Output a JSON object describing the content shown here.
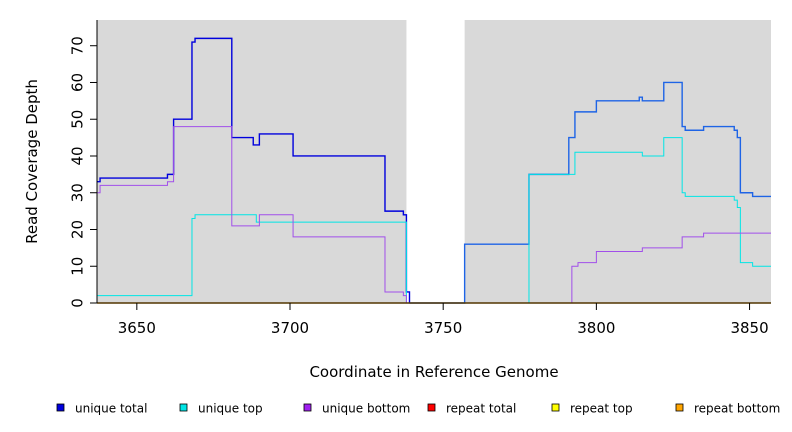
{
  "chart_data": {
    "type": "line",
    "title": "",
    "xlabel": "Coordinate in Reference Genome",
    "ylabel": "Read Coverage Depth",
    "xlim": [
      3637,
      3857
    ],
    "ylim": [
      0,
      77
    ],
    "x_ticks": [
      3650,
      3700,
      3750,
      3800,
      3850
    ],
    "y_ticks": [
      0,
      10,
      20,
      30,
      40,
      50,
      60,
      70
    ],
    "background": "#d9d9d9",
    "gap_region": [
      3738,
      3757
    ],
    "gap_color": "#ffffff",
    "step": true,
    "legend_position": "bottom",
    "series": [
      {
        "name": "unique total",
        "color": "#0000dd",
        "stroke_width": 1.4,
        "points": [
          [
            3637,
            33
          ],
          [
            3638,
            34
          ],
          [
            3645,
            34
          ],
          [
            3660,
            35
          ],
          [
            3662,
            50
          ],
          [
            3668,
            71
          ],
          [
            3669,
            72
          ],
          [
            3681,
            45
          ],
          [
            3688,
            43
          ],
          [
            3690,
            46
          ],
          [
            3701,
            40
          ],
          [
            3731,
            25
          ],
          [
            3737,
            24
          ],
          [
            3738,
            3
          ],
          [
            3739,
            0
          ]
        ]
      },
      {
        "name": "unique total",
        "color": "#1e64e6",
        "stroke_width": 1.4,
        "points": [
          [
            3739,
            0
          ],
          [
            3757,
            16
          ],
          [
            3778,
            35
          ],
          [
            3791,
            45
          ],
          [
            3793,
            52
          ],
          [
            3800,
            55
          ],
          [
            3814,
            56
          ],
          [
            3815,
            55
          ],
          [
            3822,
            60
          ],
          [
            3828,
            48
          ],
          [
            3829,
            47
          ],
          [
            3835,
            48
          ],
          [
            3845,
            47
          ],
          [
            3846,
            45
          ],
          [
            3847,
            30
          ],
          [
            3851,
            29
          ],
          [
            3857,
            29
          ]
        ]
      },
      {
        "name": "unique top",
        "color": "#00e5e5",
        "stroke_width": 1,
        "points": [
          [
            3637,
            2
          ],
          [
            3667,
            2
          ],
          [
            3668,
            23
          ],
          [
            3669,
            24
          ],
          [
            3689,
            22
          ],
          [
            3737,
            22
          ],
          [
            3738,
            0
          ],
          [
            3777,
            0
          ],
          [
            3778,
            35
          ],
          [
            3792,
            35
          ],
          [
            3793,
            41
          ],
          [
            3814,
            41
          ],
          [
            3815,
            40
          ],
          [
            3822,
            45
          ],
          [
            3828,
            30
          ],
          [
            3829,
            29
          ],
          [
            3845,
            28
          ],
          [
            3846,
            26
          ],
          [
            3847,
            11
          ],
          [
            3851,
            10
          ],
          [
            3857,
            10
          ]
        ]
      },
      {
        "name": "unique bottom",
        "color": "#a14fea",
        "stroke_width": 1,
        "points": [
          [
            3637,
            30
          ],
          [
            3638,
            32
          ],
          [
            3645,
            32
          ],
          [
            3660,
            33
          ],
          [
            3662,
            48
          ],
          [
            3681,
            21
          ],
          [
            3690,
            24
          ],
          [
            3701,
            18
          ],
          [
            3731,
            3
          ],
          [
            3737,
            2
          ],
          [
            3738,
            0
          ],
          [
            3791,
            0
          ],
          [
            3792,
            10
          ],
          [
            3794,
            11
          ],
          [
            3800,
            14
          ],
          [
            3814,
            14
          ],
          [
            3815,
            15
          ],
          [
            3828,
            18
          ],
          [
            3835,
            19
          ],
          [
            3857,
            19
          ]
        ]
      },
      {
        "name": "repeat bottom",
        "color": "#f5a000",
        "stroke_width": 1.4,
        "points": [
          [
            3637,
            0
          ],
          [
            3857,
            0
          ]
        ]
      }
    ],
    "legend": [
      {
        "name": "unique total",
        "color": "#0000dd"
      },
      {
        "name": "unique top",
        "color": "#00e5e5"
      },
      {
        "name": "unique bottom",
        "color": "#a020f0"
      },
      {
        "name": "repeat total",
        "color": "#ff0000"
      },
      {
        "name": "repeat top",
        "color": "#ffff00"
      },
      {
        "name": "repeat bottom",
        "color": "#ffa500"
      }
    ]
  }
}
